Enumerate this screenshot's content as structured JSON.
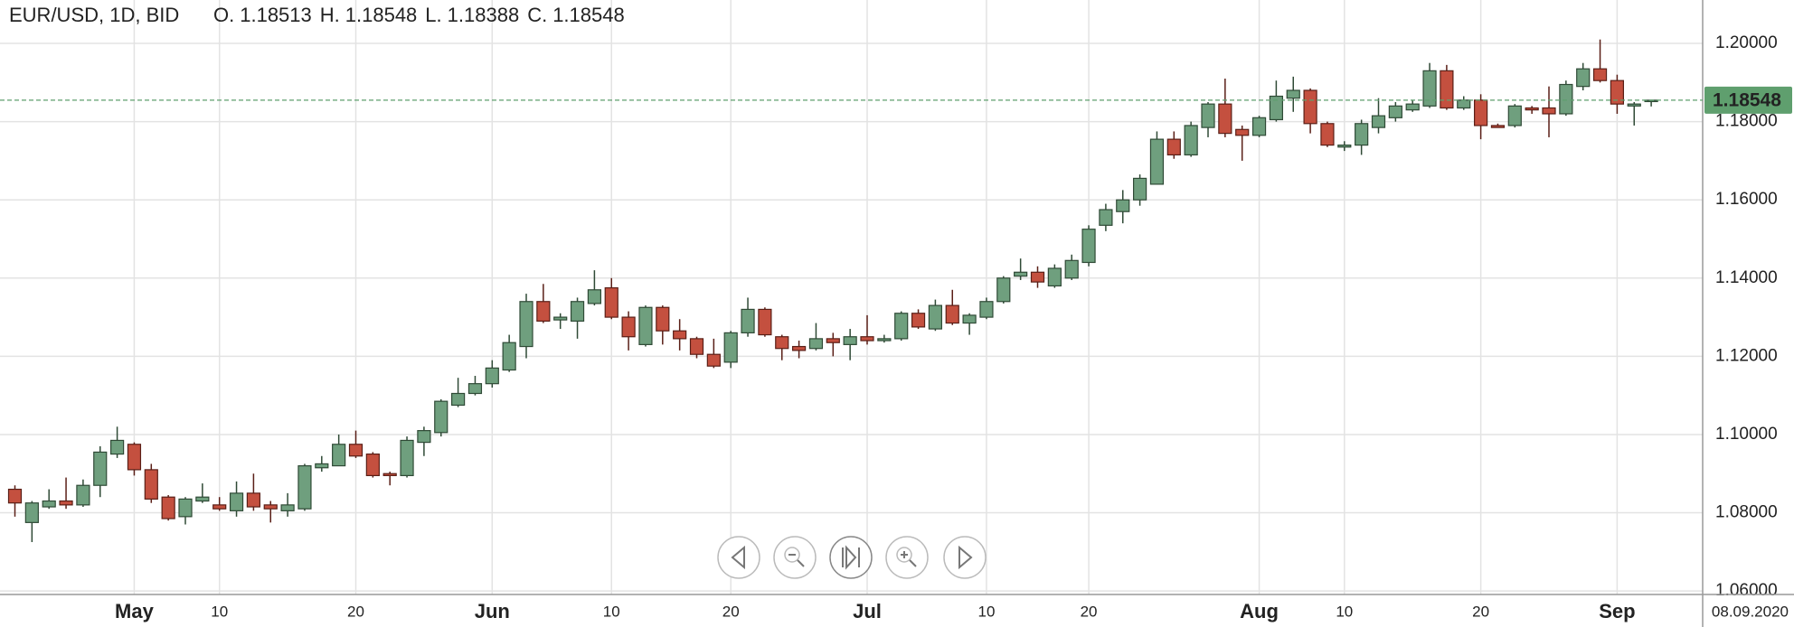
{
  "chart_data": {
    "type": "candlestick",
    "title": "EUR/USD, 1D, BID",
    "ohlc_header": [
      {
        "label": "O.",
        "value": 1.18513
      },
      {
        "label": "H.",
        "value": 1.18548
      },
      {
        "label": "L.",
        "value": 1.18388
      },
      {
        "label": "C.",
        "value": 1.18548
      }
    ],
    "date_label": "08.09.2020",
    "last_price": 1.18548,
    "up_color": "#6f9f7e",
    "down_color": "#c4503f",
    "price_line_color": "#5f9f6e",
    "ylim": [
      1.0591,
      1.2111
    ],
    "yticks": [
      {
        "value": 1.06,
        "label": "1.06000"
      },
      {
        "value": 1.08,
        "label": "1.08000"
      },
      {
        "value": 1.1,
        "label": "1.10000"
      },
      {
        "value": 1.12,
        "label": "1.12000"
      },
      {
        "value": 1.14,
        "label": "1.14000"
      },
      {
        "value": 1.16,
        "label": "1.16000"
      },
      {
        "value": 1.18,
        "label": "1.18000"
      },
      {
        "value": 1.2,
        "label": "1.20000"
      }
    ],
    "grid": true,
    "categories": [
      null,
      null,
      null,
      null,
      null,
      null,
      null,
      "May",
      null,
      null,
      null,
      null,
      "10",
      null,
      null,
      null,
      null,
      null,
      null,
      null,
      "20",
      null,
      null,
      null,
      null,
      null,
      null,
      null,
      "Jun",
      null,
      null,
      null,
      null,
      null,
      null,
      "10",
      null,
      null,
      null,
      null,
      null,
      null,
      "20",
      null,
      null,
      null,
      null,
      null,
      null,
      null,
      "Jul",
      null,
      null,
      null,
      null,
      null,
      null,
      "10",
      null,
      null,
      null,
      null,
      null,
      "20",
      null,
      null,
      null,
      null,
      null,
      null,
      null,
      null,
      null,
      "Aug",
      null,
      null,
      null,
      null,
      "10",
      null,
      null,
      null,
      null,
      null,
      null,
      null,
      "20",
      null,
      null,
      null,
      null,
      null,
      null,
      null,
      "Sep",
      null,
      null
    ],
    "open": [
      1.086,
      1.0775,
      1.0815,
      1.083,
      1.082,
      1.087,
      1.095,
      1.0975,
      1.091,
      1.084,
      1.079,
      1.083,
      1.082,
      1.0805,
      1.085,
      1.082,
      1.0805,
      1.081,
      1.0915,
      1.092,
      1.0975,
      1.095,
      1.09,
      1.0895,
      1.098,
      1.1005,
      1.1075,
      1.1105,
      1.113,
      1.1165,
      1.1225,
      1.134,
      1.1293,
      1.129,
      1.1335,
      1.1375,
      1.13,
      1.123,
      1.1325,
      1.1265,
      1.1245,
      1.1205,
      1.1185,
      1.126,
      1.132,
      1.125,
      1.1225,
      1.122,
      1.1245,
      1.123,
      1.125,
      1.124,
      1.1245,
      1.131,
      1.127,
      1.133,
      1.1285,
      1.13,
      1.134,
      1.1405,
      1.1415,
      1.138,
      1.14,
      1.144,
      1.1535,
      1.157,
      1.16,
      1.164,
      1.1755,
      1.1715,
      1.1785,
      1.1845,
      1.178,
      1.1765,
      1.1805,
      1.186,
      1.188,
      1.1795,
      1.1735,
      1.174,
      1.1785,
      1.181,
      1.183,
      1.184,
      1.193,
      1.1835,
      1.1855,
      1.179,
      1.179,
      1.1835,
      1.1835,
      1.182,
      1.189,
      1.1935,
      1.1905,
      1.184,
      1.18513
    ],
    "high": [
      1.087,
      1.083,
      1.086,
      1.089,
      1.0885,
      1.097,
      1.102,
      1.098,
      1.0925,
      1.0845,
      1.084,
      1.0875,
      1.084,
      1.088,
      1.09,
      1.083,
      1.085,
      1.0925,
      1.0945,
      1.1,
      1.101,
      1.0955,
      1.0905,
      1.0995,
      1.102,
      1.109,
      1.1145,
      1.115,
      1.119,
      1.1255,
      1.136,
      1.1385,
      1.131,
      1.135,
      1.142,
      1.14,
      1.1315,
      1.133,
      1.133,
      1.1295,
      1.125,
      1.1245,
      1.1265,
      1.135,
      1.1325,
      1.1255,
      1.124,
      1.1285,
      1.126,
      1.127,
      1.1305,
      1.1255,
      1.1315,
      1.132,
      1.1345,
      1.137,
      1.131,
      1.135,
      1.1405,
      1.145,
      1.143,
      1.1435,
      1.146,
      1.1535,
      1.159,
      1.1625,
      1.1665,
      1.1775,
      1.1775,
      1.18,
      1.185,
      1.191,
      1.179,
      1.1815,
      1.1905,
      1.1915,
      1.1885,
      1.18,
      1.175,
      1.1805,
      1.186,
      1.185,
      1.1855,
      1.195,
      1.1945,
      1.1865,
      1.187,
      1.1795,
      1.1845,
      1.184,
      1.189,
      1.1905,
      1.195,
      1.201,
      1.192,
      1.185,
      1.18548
    ],
    "low": [
      1.079,
      1.0725,
      1.081,
      1.081,
      1.0815,
      1.084,
      1.094,
      1.0895,
      1.0825,
      1.078,
      1.077,
      1.0825,
      1.0805,
      1.079,
      1.0805,
      1.0775,
      1.079,
      1.0805,
      1.0905,
      1.092,
      1.094,
      1.089,
      1.087,
      1.089,
      1.0945,
      1.0995,
      1.107,
      1.11,
      1.112,
      1.116,
      1.1195,
      1.1285,
      1.127,
      1.1245,
      1.133,
      1.1295,
      1.1215,
      1.1225,
      1.123,
      1.1215,
      1.1195,
      1.117,
      1.117,
      1.125,
      1.125,
      1.119,
      1.1195,
      1.1215,
      1.12,
      1.119,
      1.123,
      1.1235,
      1.124,
      1.127,
      1.1265,
      1.128,
      1.1255,
      1.1295,
      1.1335,
      1.1395,
      1.1375,
      1.1375,
      1.1395,
      1.143,
      1.152,
      1.154,
      1.1585,
      1.164,
      1.1705,
      1.171,
      1.176,
      1.176,
      1.17,
      1.176,
      1.18,
      1.1825,
      1.177,
      1.1735,
      1.1725,
      1.1715,
      1.177,
      1.18,
      1.1825,
      1.1835,
      1.183,
      1.183,
      1.1755,
      1.1785,
      1.1785,
      1.182,
      1.176,
      1.1815,
      1.188,
      1.19,
      1.182,
      1.179,
      1.18388
    ],
    "close": [
      1.0825,
      1.0825,
      1.083,
      1.082,
      1.087,
      1.0955,
      1.0985,
      1.091,
      1.0835,
      1.0785,
      1.0835,
      1.084,
      1.081,
      1.085,
      1.0815,
      1.081,
      1.082,
      1.092,
      1.0925,
      1.0975,
      1.0945,
      1.0895,
      1.0895,
      1.0985,
      1.101,
      1.1085,
      1.1105,
      1.113,
      1.117,
      1.1235,
      1.134,
      1.129,
      1.13,
      1.134,
      1.137,
      1.13,
      1.125,
      1.1325,
      1.1265,
      1.1245,
      1.1205,
      1.1175,
      1.126,
      1.132,
      1.1255,
      1.122,
      1.1215,
      1.1245,
      1.1235,
      1.125,
      1.124,
      1.1245,
      1.131,
      1.1275,
      1.133,
      1.1285,
      1.1305,
      1.134,
      1.14,
      1.1415,
      1.139,
      1.1425,
      1.1445,
      1.1525,
      1.1575,
      1.16,
      1.1655,
      1.1755,
      1.1715,
      1.179,
      1.1845,
      1.177,
      1.1765,
      1.181,
      1.1865,
      1.188,
      1.1795,
      1.174,
      1.174,
      1.1795,
      1.1815,
      1.184,
      1.1845,
      1.193,
      1.1835,
      1.1855,
      1.179,
      1.1785,
      1.184,
      1.183,
      1.182,
      1.1895,
      1.1935,
      1.1905,
      1.1845,
      1.1845,
      1.18548
    ]
  }
}
